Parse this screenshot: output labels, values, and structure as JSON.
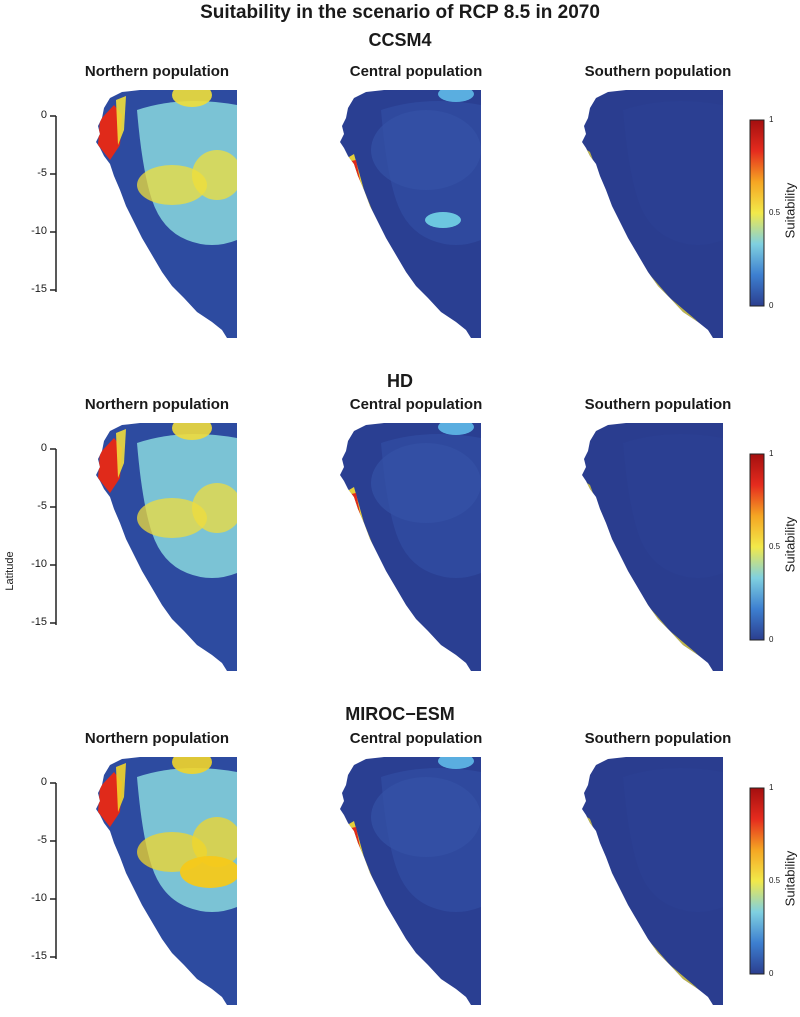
{
  "title": "Suitability in the scenario of RCP 8.5 in 2070",
  "y_axis_label": "Latitude",
  "y_ticks": [
    "0",
    "-5",
    "-10",
    "-15"
  ],
  "colorbar": {
    "label": "Suitability",
    "ticks": [
      "1",
      "0.5",
      "0"
    ],
    "colors": [
      "#2b3e8f",
      "#3d7fd0",
      "#7fd0e0",
      "#f2e94a",
      "#f5a623",
      "#e52b1e",
      "#a40f0f"
    ]
  },
  "rows": [
    {
      "model": "CCSM4",
      "panels": [
        {
          "population": "Northern population",
          "land": "#2d4ba0",
          "basin": "#7fc9d8",
          "hot": "#f0df3a",
          "peak": "#e02a1a",
          "basin_level": 0.35,
          "coast_level": 0.9
        },
        {
          "population": "Central population",
          "land": "#2a3f92",
          "basin": "#2f4a9f",
          "hot": "#e6d03a",
          "peak": "#e02a1a",
          "basin_level": 0.12,
          "coast_level": 0.85
        },
        {
          "population": "Southern population",
          "land": "#2a3d8f",
          "basin": "#2b3f92",
          "hot": "#d7c940",
          "peak": "#e8522a",
          "basin_level": 0.05,
          "coast_level": 0.7
        }
      ]
    },
    {
      "model": "HD",
      "panels": [
        {
          "population": "Northern population",
          "land": "#2d4ba0",
          "basin": "#7fc9d8",
          "hot": "#efdc3c",
          "peak": "#e02a1a",
          "basin_level": 0.4,
          "coast_level": 0.9
        },
        {
          "population": "Central population",
          "land": "#2a3f92",
          "basin": "#2f4a9f",
          "hot": "#e6d03a",
          "peak": "#e02a1a",
          "basin_level": 0.12,
          "coast_level": 0.88
        },
        {
          "population": "Southern population",
          "land": "#2a3d8f",
          "basin": "#2b3f92",
          "hot": "#d7c940",
          "peak": "#e8522a",
          "basin_level": 0.05,
          "coast_level": 0.7
        }
      ]
    },
    {
      "model": "MIROC−ESM",
      "panels": [
        {
          "population": "Northern population",
          "land": "#2d4ba0",
          "basin": "#7fc9d8",
          "hot": "#f2d52a",
          "peak": "#e02a1a",
          "basin_level": 0.4,
          "coast_level": 0.92
        },
        {
          "population": "Central population",
          "land": "#2a3f92",
          "basin": "#2f4a9f",
          "hot": "#e6d03a",
          "peak": "#e02a1a",
          "basin_level": 0.12,
          "coast_level": 0.9
        },
        {
          "population": "Southern population",
          "land": "#2a3d8f",
          "basin": "#2b3f92",
          "hot": "#d7c940",
          "peak": "#e8522a",
          "basin_level": 0.05,
          "coast_level": 0.7
        }
      ]
    }
  ]
}
